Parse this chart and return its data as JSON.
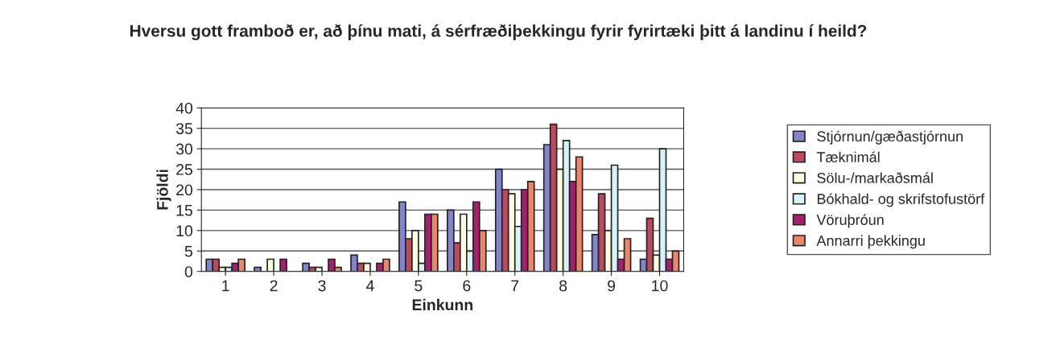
{
  "chart_data": {
    "type": "bar",
    "title": "Hversu gott framboð er, að þínu mati, á sérfræðiþekkingu fyrir fyrirtæki þitt á landinu í heild?",
    "xlabel": "Einkunn",
    "ylabel": "Fjöldi",
    "categories": [
      "1",
      "2",
      "3",
      "4",
      "5",
      "6",
      "7",
      "8",
      "9",
      "10"
    ],
    "series": [
      {
        "name": "Stjórnun/gæðastjórnun",
        "color": "#8484cc",
        "values": [
          3,
          1,
          2,
          4,
          17,
          15,
          25,
          31,
          9,
          3
        ]
      },
      {
        "name": "Tæknimál",
        "color": "#b84c5c",
        "values": [
          3,
          0,
          1,
          2,
          8,
          7,
          20,
          36,
          19,
          13
        ]
      },
      {
        "name": "Sölu-/markaðsmál",
        "color": "#fffbe0",
        "values": [
          1,
          3,
          1,
          2,
          10,
          14,
          19,
          25,
          10,
          4
        ]
      },
      {
        "name": "Bókhald- og skrifstofustörf",
        "color": "#d8f2f8",
        "values": [
          1,
          0,
          0,
          0,
          2,
          5,
          11,
          32,
          26,
          30
        ]
      },
      {
        "name": "Vöruþróun",
        "color": "#a0226c",
        "values": [
          2,
          3,
          3,
          2,
          14,
          17,
          20,
          22,
          3,
          3
        ]
      },
      {
        "name": "Annarri þekkingu",
        "color": "#e8866e",
        "values": [
          3,
          0,
          1,
          3,
          14,
          10,
          22,
          28,
          8,
          5
        ]
      }
    ],
    "ylim": [
      0,
      40
    ],
    "yticks": [
      0,
      5,
      10,
      15,
      20,
      25,
      30,
      35,
      40
    ],
    "grid": "y",
    "legend": "right"
  }
}
